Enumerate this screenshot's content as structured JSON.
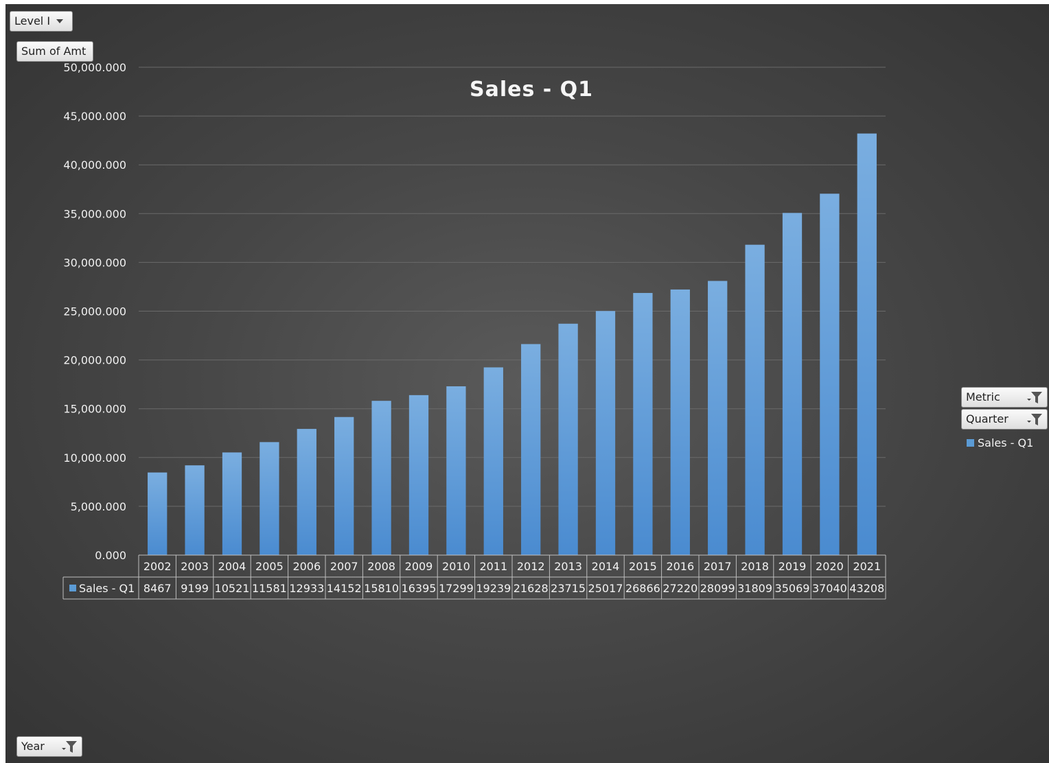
{
  "pivot_buttons": {
    "level": "Level I",
    "sum": "Sum of Amt",
    "metric": "Metric",
    "quarter": "Quarter",
    "year": "Year"
  },
  "colors": {
    "bar": "#5b9bd5",
    "gridline": "#6a6a6a",
    "table_line": "#bfbfbf"
  },
  "icons": {
    "dropdown": "dropdown-arrow-icon",
    "filter": "filter-icon"
  },
  "chart_data": {
    "type": "bar",
    "title": "Sales - Q1",
    "xlabel": "",
    "ylabel": "",
    "ylim": [
      0,
      50000
    ],
    "ytick_step": 5000,
    "ytick_labels": [
      "0.000",
      "5,000.000",
      "10,000.000",
      "15,000.000",
      "20,000.000",
      "25,000.000",
      "30,000.000",
      "35,000.000",
      "40,000.000",
      "45,000.000",
      "50,000.000"
    ],
    "grid": true,
    "legend_position": "right",
    "data_table": true,
    "categories": [
      "2002",
      "2003",
      "2004",
      "2005",
      "2006",
      "2007",
      "2008",
      "2009",
      "2010",
      "2011",
      "2012",
      "2013",
      "2014",
      "2015",
      "2016",
      "2017",
      "2018",
      "2019",
      "2020",
      "2021"
    ],
    "series": [
      {
        "name": "Sales - Q1",
        "values": [
          8467,
          9199,
          10521,
          11581,
          12933,
          14152,
          15810,
          16395,
          17299,
          19239,
          21628,
          23715,
          25017,
          26866,
          27220,
          28099,
          31809,
          35069,
          37040,
          43208
        ]
      }
    ]
  }
}
